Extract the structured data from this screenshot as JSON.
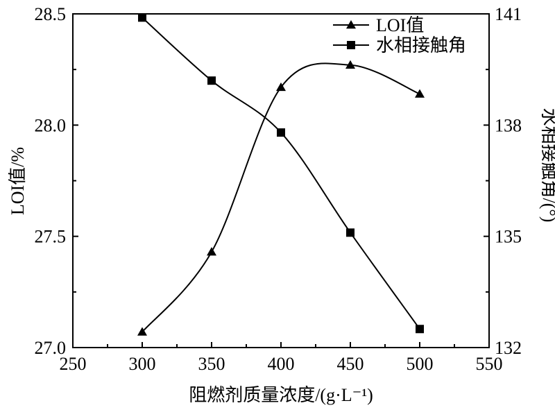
{
  "chart_data": {
    "type": "line",
    "xlabel": "阻燃剂质量浓度/(g·L⁻¹)",
    "ylabel": "LOI值/%",
    "y2label": "水相接触角/(°)",
    "xlim": [
      250,
      550
    ],
    "ylim": [
      27.0,
      28.5
    ],
    "y2lim": [
      132,
      141
    ],
    "x_ticks": [
      250,
      300,
      350,
      400,
      450,
      500,
      550
    ],
    "y_ticks": [
      27.0,
      27.5,
      28.0,
      28.5
    ],
    "y_tick_labels": [
      "27.0",
      "27.5",
      "28.0",
      "28.5"
    ],
    "y2_ticks": [
      132,
      135,
      138,
      141
    ],
    "grid": false,
    "legend": "top-right",
    "x": [
      300,
      350,
      400,
      450,
      500
    ],
    "series": [
      {
        "name": "LOI值",
        "axis": "left",
        "marker": "triangle",
        "values": [
          27.07,
          27.43,
          28.17,
          28.27,
          28.14
        ]
      },
      {
        "name": "水相接触角",
        "axis": "right",
        "marker": "square",
        "values": [
          140.9,
          139.2,
          137.8,
          135.1,
          132.5
        ]
      }
    ]
  }
}
